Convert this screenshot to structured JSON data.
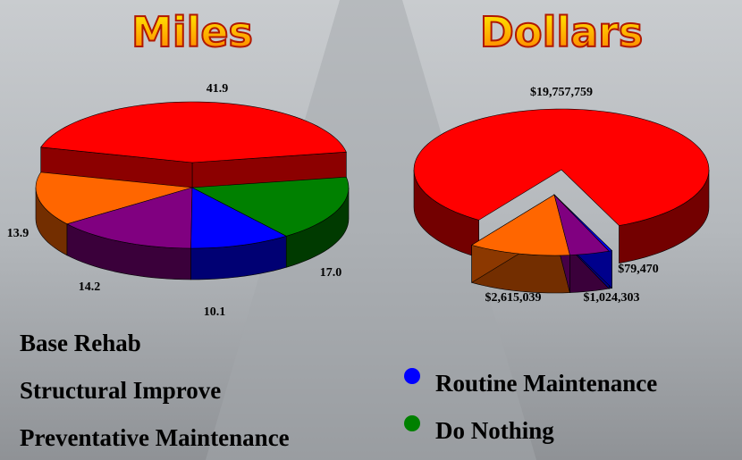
{
  "chart_data": [
    {
      "type": "pie3d",
      "title": "Miles",
      "categories": [
        "Base Rehab",
        "Structural Improve",
        "Preventative Maintenance",
        "Routine Maintenance",
        "Do Nothing"
      ],
      "values": [
        41.9,
        13.9,
        14.2,
        10.1,
        17.0
      ],
      "value_labels": [
        "41.9",
        "13.9",
        "14.2",
        "10.1",
        "17.0"
      ],
      "colors": [
        "#ff0000",
        "#ff6600",
        "#800080",
        "#0000ff",
        "#008000"
      ]
    },
    {
      "type": "pie3d",
      "title": "Dollars",
      "categories": [
        "Base Rehab",
        "Structural Improve",
        "Preventative Maintenance",
        "Routine Maintenance"
      ],
      "values": [
        19757759,
        2615039,
        1024303,
        79470
      ],
      "value_labels": [
        "$19,757,759",
        "$2,615,039",
        "$1,024,303",
        "$79,470"
      ],
      "colors": [
        "#ff0000",
        "#ff6600",
        "#800080",
        "#0000ff"
      ]
    }
  ]
}
